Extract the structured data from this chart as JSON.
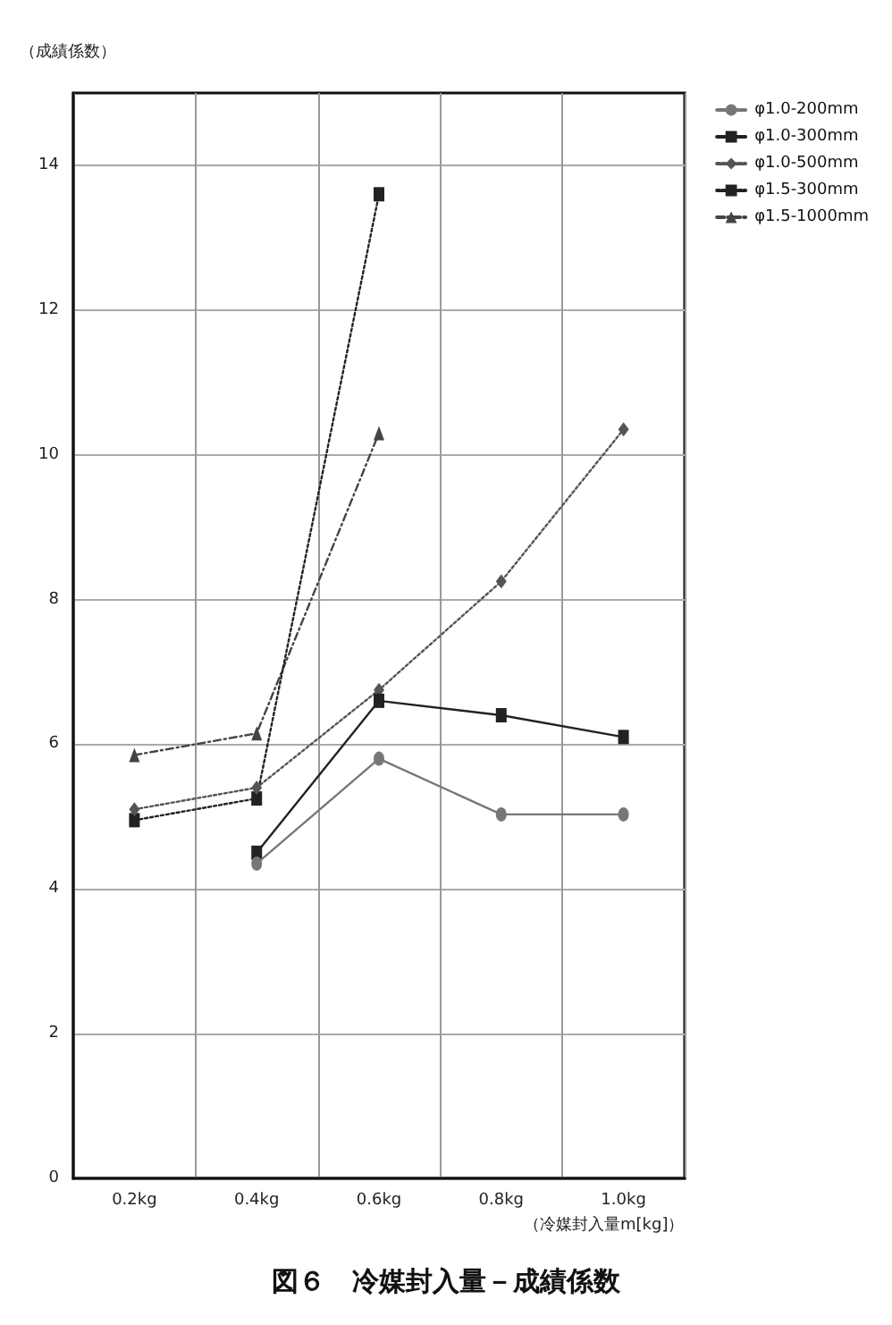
{
  "chart_data": {
    "type": "line",
    "title": "図６　冷媒封入量－成績係数",
    "xlabel": "（冷媒封入量m[kg]）",
    "ylabel": "（成績係数）",
    "categories": [
      "0.2kg",
      "0.4kg",
      "0.6kg",
      "0.8kg",
      "1.0kg"
    ],
    "ylim": [
      0,
      15
    ],
    "yticks": [
      0,
      2,
      4,
      6,
      8,
      10,
      12,
      14
    ],
    "grid": true,
    "legend": "top right",
    "series": [
      {
        "name": "φ1.0-200mm",
        "color": "#777777",
        "marker": "circle",
        "line_style": "solid",
        "values": [
          null,
          4.35,
          5.8,
          5.03,
          5.03
        ]
      },
      {
        "name": "φ1.0-300mm",
        "color": "#222222",
        "marker": "square",
        "line_style": "solid",
        "values": [
          null,
          4.5,
          6.6,
          6.4,
          6.1
        ]
      },
      {
        "name": "φ1.0-500mm",
        "color": "#555555",
        "marker": "diamond",
        "line_style": "dotted",
        "values": [
          5.1,
          5.4,
          6.75,
          8.25,
          10.35
        ]
      },
      {
        "name": "φ1.5-300mm",
        "color": "#222222",
        "marker": "square",
        "line_style": "dotted",
        "values": [
          4.95,
          5.25,
          13.6,
          null,
          null
        ]
      },
      {
        "name": "φ1.5-1000mm",
        "color": "#444444",
        "marker": "triangle",
        "line_style": "dashed",
        "values": [
          5.85,
          6.15,
          10.3,
          null,
          null
        ]
      }
    ]
  }
}
